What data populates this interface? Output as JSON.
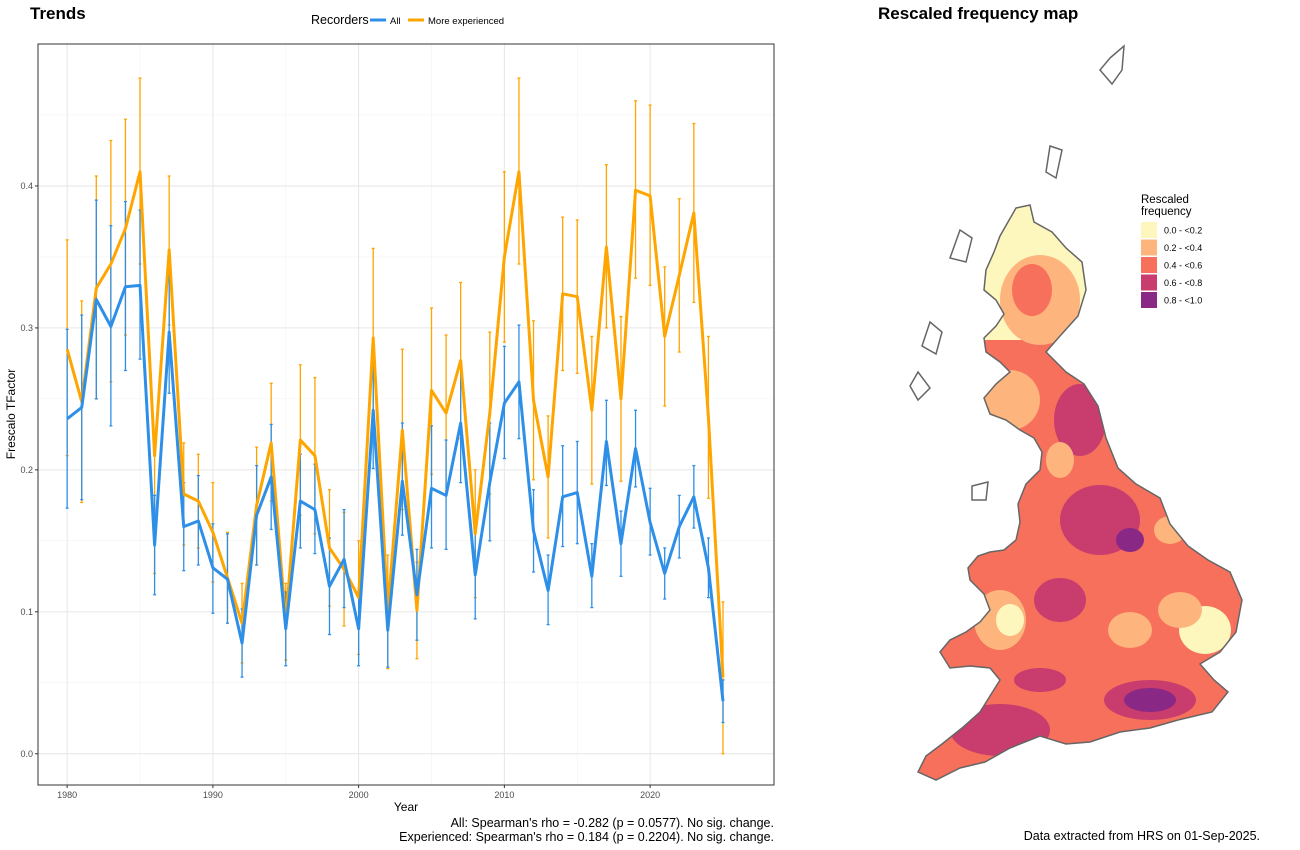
{
  "trends": {
    "title": "Trends",
    "legend_title": "Recorders",
    "footer_all": "All: Spearman's rho = -0.282 (p = 0.0577). No sig. change.",
    "footer_exp": "Experienced: Spearman's rho = 0.184 (p = 0.2204). No sig. change."
  },
  "map": {
    "title": "Rescaled frequency map",
    "legend_title_line1": "Rescaled",
    "legend_title_line2": "frequency",
    "legend": [
      {
        "label": "0.0 - <0.2",
        "color": "#FDF7BE"
      },
      {
        "label": "0.2 - <0.4",
        "color": "#FDB47D"
      },
      {
        "label": "0.4 - <0.6",
        "color": "#F7705C"
      },
      {
        "label": "0.6 - <0.8",
        "color": "#C93C6E"
      },
      {
        "label": "0.8 - <1.0",
        "color": "#8A2886"
      }
    ],
    "extract_note": "Data extracted from HRS on 01-Sep-2025."
  },
  "chart_data": {
    "type": "line",
    "xlabel": "Year",
    "ylabel": "Frescalo TFactor",
    "xlim": [
      1978,
      2028.5
    ],
    "ylim": [
      -0.022,
      0.5
    ],
    "x_ticks": [
      1980,
      1990,
      2000,
      2010,
      2020
    ],
    "y_ticks": [
      0.0,
      0.1,
      0.2,
      0.3,
      0.4
    ],
    "legend_position": "top",
    "grid": true,
    "x": [
      1980,
      1981,
      1982,
      1983,
      1984,
      1985,
      1986,
      1987,
      1988,
      1989,
      1990,
      1991,
      1992,
      1993,
      1994,
      1995,
      1996,
      1997,
      1998,
      1999,
      2000,
      2001,
      2002,
      2003,
      2004,
      2005,
      2006,
      2007,
      2008,
      2009,
      2010,
      2011,
      2012,
      2013,
      2014,
      2015,
      2016,
      2017,
      2018,
      2019,
      2020,
      2021,
      2022,
      2023,
      2024,
      2025
    ],
    "series": [
      {
        "name": "All",
        "color": "#2E8FE8",
        "values": [
          0.236,
          0.244,
          0.32,
          0.301,
          0.329,
          0.33,
          0.147,
          0.297,
          0.16,
          0.164,
          0.131,
          0.123,
          0.078,
          0.168,
          0.195,
          0.088,
          0.178,
          0.172,
          0.118,
          0.137,
          0.088,
          0.242,
          0.087,
          0.192,
          0.112,
          0.187,
          0.182,
          0.233,
          0.126,
          0.191,
          0.247,
          0.262,
          0.157,
          0.115,
          0.181,
          0.184,
          0.125,
          0.22,
          0.148,
          0.215,
          0.163,
          0.127,
          0.16,
          0.181,
          0.131,
          0.037
        ],
        "lower": [
          0.173,
          0.179,
          0.25,
          0.231,
          0.27,
          0.278,
          0.112,
          0.254,
          0.129,
          0.133,
          0.099,
          0.092,
          0.054,
          0.133,
          0.158,
          0.062,
          0.145,
          0.141,
          0.084,
          0.103,
          0.062,
          0.201,
          0.061,
          0.154,
          0.08,
          0.145,
          0.144,
          0.191,
          0.095,
          0.15,
          0.208,
          0.222,
          0.128,
          0.091,
          0.146,
          0.148,
          0.103,
          0.189,
          0.125,
          0.188,
          0.14,
          0.109,
          0.138,
          0.159,
          0.11,
          0.022
        ],
        "upper": [
          0.299,
          0.309,
          0.39,
          0.372,
          0.389,
          0.383,
          0.182,
          0.341,
          0.191,
          0.196,
          0.162,
          0.155,
          0.102,
          0.203,
          0.232,
          0.114,
          0.211,
          0.204,
          0.152,
          0.172,
          0.114,
          0.284,
          0.113,
          0.233,
          0.144,
          0.231,
          0.221,
          0.276,
          0.157,
          0.233,
          0.287,
          0.302,
          0.186,
          0.14,
          0.217,
          0.22,
          0.148,
          0.249,
          0.171,
          0.242,
          0.187,
          0.145,
          0.182,
          0.203,
          0.152,
          0.052
        ]
      },
      {
        "name": "More experienced",
        "color": "#FFA500",
        "values": [
          0.285,
          0.248,
          0.328,
          0.345,
          0.37,
          0.41,
          0.21,
          0.355,
          0.183,
          0.178,
          0.156,
          0.124,
          0.092,
          0.175,
          0.219,
          0.093,
          0.221,
          0.21,
          0.145,
          0.13,
          0.11,
          0.293,
          0.1,
          0.228,
          0.101,
          0.256,
          0.24,
          0.277,
          0.155,
          0.24,
          0.35,
          0.41,
          0.249,
          0.195,
          0.324,
          0.322,
          0.242,
          0.357,
          0.25,
          0.397,
          0.393,
          0.294,
          0.337,
          0.381,
          0.237,
          0.054
        ],
        "lower": [
          0.21,
          0.177,
          0.25,
          0.262,
          0.295,
          0.345,
          0.127,
          0.302,
          0.147,
          0.145,
          0.121,
          0.092,
          0.064,
          0.133,
          0.178,
          0.066,
          0.168,
          0.155,
          0.104,
          0.09,
          0.07,
          0.231,
          0.06,
          0.172,
          0.067,
          0.197,
          0.185,
          0.222,
          0.11,
          0.183,
          0.29,
          0.345,
          0.193,
          0.152,
          0.27,
          0.268,
          0.19,
          0.3,
          0.192,
          0.335,
          0.33,
          0.245,
          0.283,
          0.318,
          0.18,
          0.0
        ],
        "upper": [
          0.362,
          0.319,
          0.407,
          0.432,
          0.447,
          0.476,
          0.21,
          0.407,
          0.219,
          0.211,
          0.191,
          0.156,
          0.12,
          0.216,
          0.261,
          0.12,
          0.274,
          0.265,
          0.186,
          0.17,
          0.15,
          0.356,
          0.14,
          0.285,
          0.135,
          0.314,
          0.295,
          0.332,
          0.2,
          0.297,
          0.41,
          0.476,
          0.305,
          0.238,
          0.378,
          0.376,
          0.294,
          0.415,
          0.308,
          0.46,
          0.457,
          0.343,
          0.391,
          0.444,
          0.294,
          0.107
        ]
      }
    ]
  }
}
